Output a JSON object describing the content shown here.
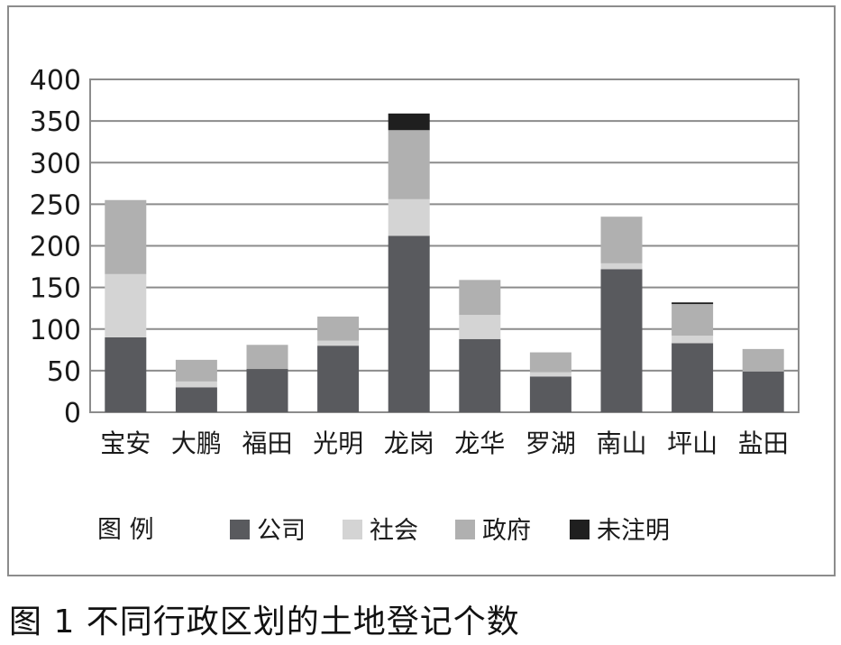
{
  "chart_data": {
    "type": "bar",
    "stacked": true,
    "categories": [
      "宝安",
      "大鹏",
      "福田",
      "光明",
      "龙岗",
      "龙华",
      "罗湖",
      "南山",
      "坪山",
      "盐田"
    ],
    "series": [
      {
        "name": "公司",
        "color": "#595a5e",
        "values": [
          90,
          30,
          52,
          80,
          212,
          88,
          43,
          172,
          83,
          49
        ]
      },
      {
        "name": "社会",
        "color": "#d4d4d4",
        "values": [
          76,
          7,
          0,
          6,
          44,
          29,
          5,
          7,
          9,
          0
        ]
      },
      {
        "name": "政府",
        "color": "#b0b0b0",
        "values": [
          89,
          26,
          29,
          29,
          83,
          42,
          24,
          56,
          38,
          27
        ]
      },
      {
        "name": "未注明",
        "color": "#1f1f1f",
        "values": [
          0,
          0,
          0,
          0,
          20,
          0,
          0,
          0,
          2,
          0
        ]
      }
    ],
    "ylim": [
      0,
      400
    ],
    "yticks": [
      0,
      50,
      100,
      150,
      200,
      250,
      300,
      350,
      400
    ],
    "grid": true,
    "legend_title": "图 例",
    "legend_position": "bottom"
  },
  "caption": "图 1  不同行政区划的土地登记个数"
}
